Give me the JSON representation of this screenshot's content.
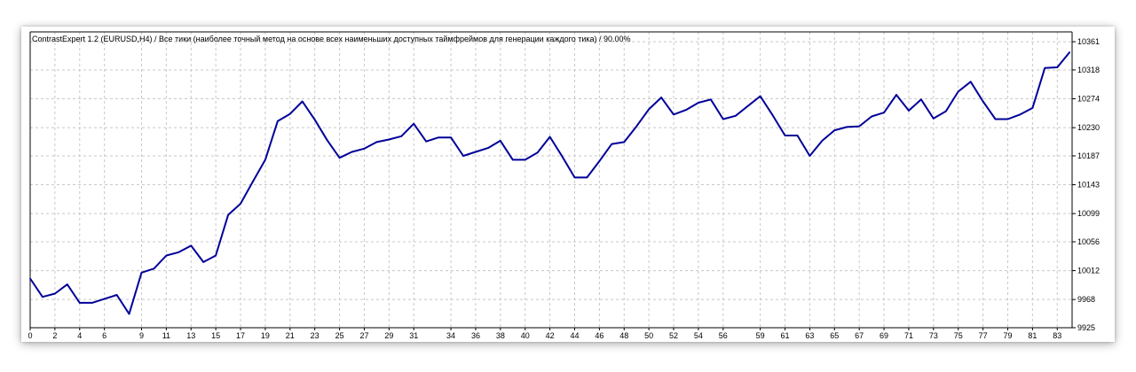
{
  "chart_data": {
    "type": "line",
    "title": "ContrastExpert 1.2 (EURUSD,H4) / Все тики (наиболее точный метод на основе всех наименьших доступных таймфреймов для генерации каждого тика) / 90.00%",
    "xlabel": "",
    "ylabel": "",
    "x_ticks": [
      0,
      2,
      4,
      6,
      9,
      11,
      13,
      15,
      17,
      19,
      21,
      23,
      25,
      27,
      29,
      31,
      34,
      36,
      38,
      40,
      42,
      44,
      46,
      48,
      50,
      52,
      54,
      56,
      59,
      61,
      63,
      65,
      67,
      69,
      71,
      73,
      75,
      77,
      79,
      81,
      83
    ],
    "y_ticks": [
      9925,
      9968,
      10012,
      10056,
      10099,
      10143,
      10187,
      10230,
      10274,
      10318,
      10361
    ],
    "xlim": [
      0,
      84.2
    ],
    "ylim": [
      9925,
      10376
    ],
    "grid": true,
    "axis_position": "right",
    "colors": {
      "line": "#000099",
      "grid": "#c8c8c8",
      "axis": "#000000"
    },
    "series": [
      {
        "values": [
          [
            0,
            10000
          ],
          [
            1,
            9972
          ],
          [
            2,
            9977
          ],
          [
            3,
            9991
          ],
          [
            4,
            9963
          ],
          [
            5,
            9963
          ],
          [
            6,
            9969
          ],
          [
            7,
            9975
          ],
          [
            8,
            9946
          ],
          [
            9,
            10009
          ],
          [
            10,
            10015
          ],
          [
            11,
            10035
          ],
          [
            12,
            10040
          ],
          [
            13,
            10050
          ],
          [
            14,
            10025
          ],
          [
            15,
            10035
          ],
          [
            16,
            10097
          ],
          [
            17,
            10114
          ],
          [
            18,
            10148
          ],
          [
            19,
            10181
          ],
          [
            20,
            10240
          ],
          [
            21,
            10251
          ],
          [
            22,
            10270
          ],
          [
            23,
            10242
          ],
          [
            24,
            10211
          ],
          [
            25,
            10184
          ],
          [
            26,
            10193
          ],
          [
            27,
            10198
          ],
          [
            28,
            10208
          ],
          [
            29,
            10212
          ],
          [
            30,
            10217
          ],
          [
            31,
            10236
          ],
          [
            32,
            10209
          ],
          [
            33,
            10215
          ],
          [
            34,
            10215
          ],
          [
            35,
            10187
          ],
          [
            36,
            10193
          ],
          [
            37,
            10199
          ],
          [
            38,
            10210
          ],
          [
            39,
            10181
          ],
          [
            40,
            10181
          ],
          [
            41,
            10192
          ],
          [
            42,
            10216
          ],
          [
            43,
            10186
          ],
          [
            44,
            10154
          ],
          [
            45,
            10154
          ],
          [
            46,
            10179
          ],
          [
            47,
            10205
          ],
          [
            48,
            10208
          ],
          [
            49,
            10232
          ],
          [
            50,
            10258
          ],
          [
            51,
            10276
          ],
          [
            52,
            10250
          ],
          [
            53,
            10257
          ],
          [
            54,
            10268
          ],
          [
            55,
            10273
          ],
          [
            56,
            10243
          ],
          [
            57,
            10248
          ],
          [
            58,
            10263
          ],
          [
            59,
            10278
          ],
          [
            60,
            10249
          ],
          [
            61,
            10218
          ],
          [
            62,
            10218
          ],
          [
            63,
            10187
          ],
          [
            64,
            10210
          ],
          [
            65,
            10226
          ],
          [
            66,
            10231
          ],
          [
            67,
            10232
          ],
          [
            68,
            10247
          ],
          [
            69,
            10253
          ],
          [
            70,
            10280
          ],
          [
            71,
            10256
          ],
          [
            72,
            10273
          ],
          [
            73,
            10244
          ],
          [
            74,
            10255
          ],
          [
            75,
            10285
          ],
          [
            76,
            10300
          ],
          [
            77,
            10270
          ],
          [
            78,
            10243
          ],
          [
            79,
            10243
          ],
          [
            80,
            10250
          ],
          [
            81,
            10260
          ],
          [
            82,
            10321
          ],
          [
            83,
            10322
          ],
          [
            84,
            10345
          ]
        ]
      }
    ]
  }
}
